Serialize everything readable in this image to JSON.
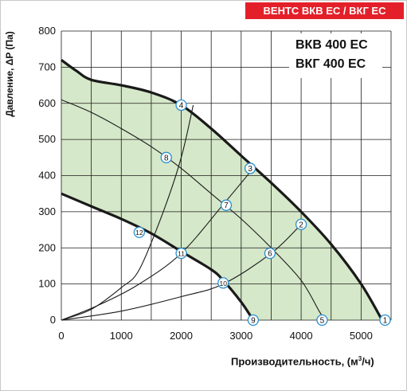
{
  "header": {
    "badge": "ВЕНТС ВКВ ЕС / ВКГ ЕС"
  },
  "legend": {
    "model_1": "ВКВ 400 ЕС",
    "model_2": "ВКГ 400 ЕС"
  },
  "axes": {
    "ylabel": "Давление, ΔP (Па)",
    "xlabel_prefix": "Производительность, (м",
    "xlabel_exp": "3",
    "xlabel_suffix": "/ч)"
  },
  "chart_data": {
    "type": "area",
    "xlim": [
      0,
      5500
    ],
    "ylim": [
      0,
      800
    ],
    "xticks": [
      0,
      1000,
      2000,
      3000,
      4000,
      5000
    ],
    "yticks": [
      0,
      100,
      200,
      300,
      400,
      500,
      600,
      700,
      800
    ],
    "grid": true,
    "colors": {
      "fill": "#d5e8c9",
      "curve": "#1a1a1a",
      "marker_stroke": "#2a8fcf",
      "marker_fill": "#ffffff",
      "badge": "#e3202a"
    },
    "operating_region": {
      "upper_curve": [
        [
          0,
          720
        ],
        [
          250,
          690
        ],
        [
          500,
          665
        ],
        [
          1000,
          650
        ],
        [
          1500,
          630
        ],
        [
          2000,
          595
        ],
        [
          2500,
          530
        ],
        [
          3000,
          455
        ],
        [
          3500,
          380
        ],
        [
          4000,
          300
        ],
        [
          4500,
          210
        ],
        [
          5000,
          100
        ],
        [
          5350,
          0
        ]
      ],
      "lower_curve": [
        [
          0,
          350
        ],
        [
          500,
          315
        ],
        [
          1000,
          280
        ],
        [
          1500,
          240
        ],
        [
          2000,
          190
        ],
        [
          2500,
          140
        ],
        [
          2700,
          110
        ],
        [
          3000,
          50
        ],
        [
          3200,
          0
        ]
      ]
    },
    "fan_curves": [
      {
        "points": [
          [
            0,
            610
          ],
          [
            500,
            575
          ],
          [
            1000,
            530
          ],
          [
            1500,
            480
          ],
          [
            2000,
            420
          ],
          [
            2500,
            350
          ],
          [
            3000,
            280
          ],
          [
            3500,
            200
          ],
          [
            4000,
            110
          ],
          [
            4300,
            25
          ],
          [
            4400,
            0
          ]
        ]
      }
    ],
    "system_curves": [
      {
        "points": [
          [
            0,
            0
          ],
          [
            500,
            30
          ],
          [
            1000,
            90
          ],
          [
            1300,
            140
          ],
          [
            1700,
            300
          ],
          [
            2000,
            450
          ],
          [
            2200,
            595
          ]
        ]
      },
      {
        "points": [
          [
            0,
            0
          ],
          [
            600,
            40
          ],
          [
            1300,
            100
          ],
          [
            2000,
            185
          ],
          [
            2700,
            320
          ],
          [
            3200,
            420
          ]
        ]
      },
      {
        "points": [
          [
            0,
            0
          ],
          [
            1000,
            25
          ],
          [
            2000,
            65
          ],
          [
            2700,
            100
          ],
          [
            3500,
            185
          ],
          [
            4000,
            265
          ]
        ]
      }
    ],
    "operating_points": [
      {
        "label": "1",
        "x": 5400,
        "y": 0
      },
      {
        "label": "2",
        "x": 4000,
        "y": 265
      },
      {
        "label": "3",
        "x": 3150,
        "y": 420
      },
      {
        "label": "4",
        "x": 2000,
        "y": 595
      },
      {
        "label": "5",
        "x": 4350,
        "y": 0
      },
      {
        "label": "6",
        "x": 3480,
        "y": 185
      },
      {
        "label": "7",
        "x": 2750,
        "y": 318
      },
      {
        "label": "8",
        "x": 1750,
        "y": 450
      },
      {
        "label": "9",
        "x": 3200,
        "y": 0
      },
      {
        "label": "10",
        "x": 2700,
        "y": 103
      },
      {
        "label": "11",
        "x": 2000,
        "y": 185
      },
      {
        "label": "12",
        "x": 1300,
        "y": 243
      }
    ]
  }
}
